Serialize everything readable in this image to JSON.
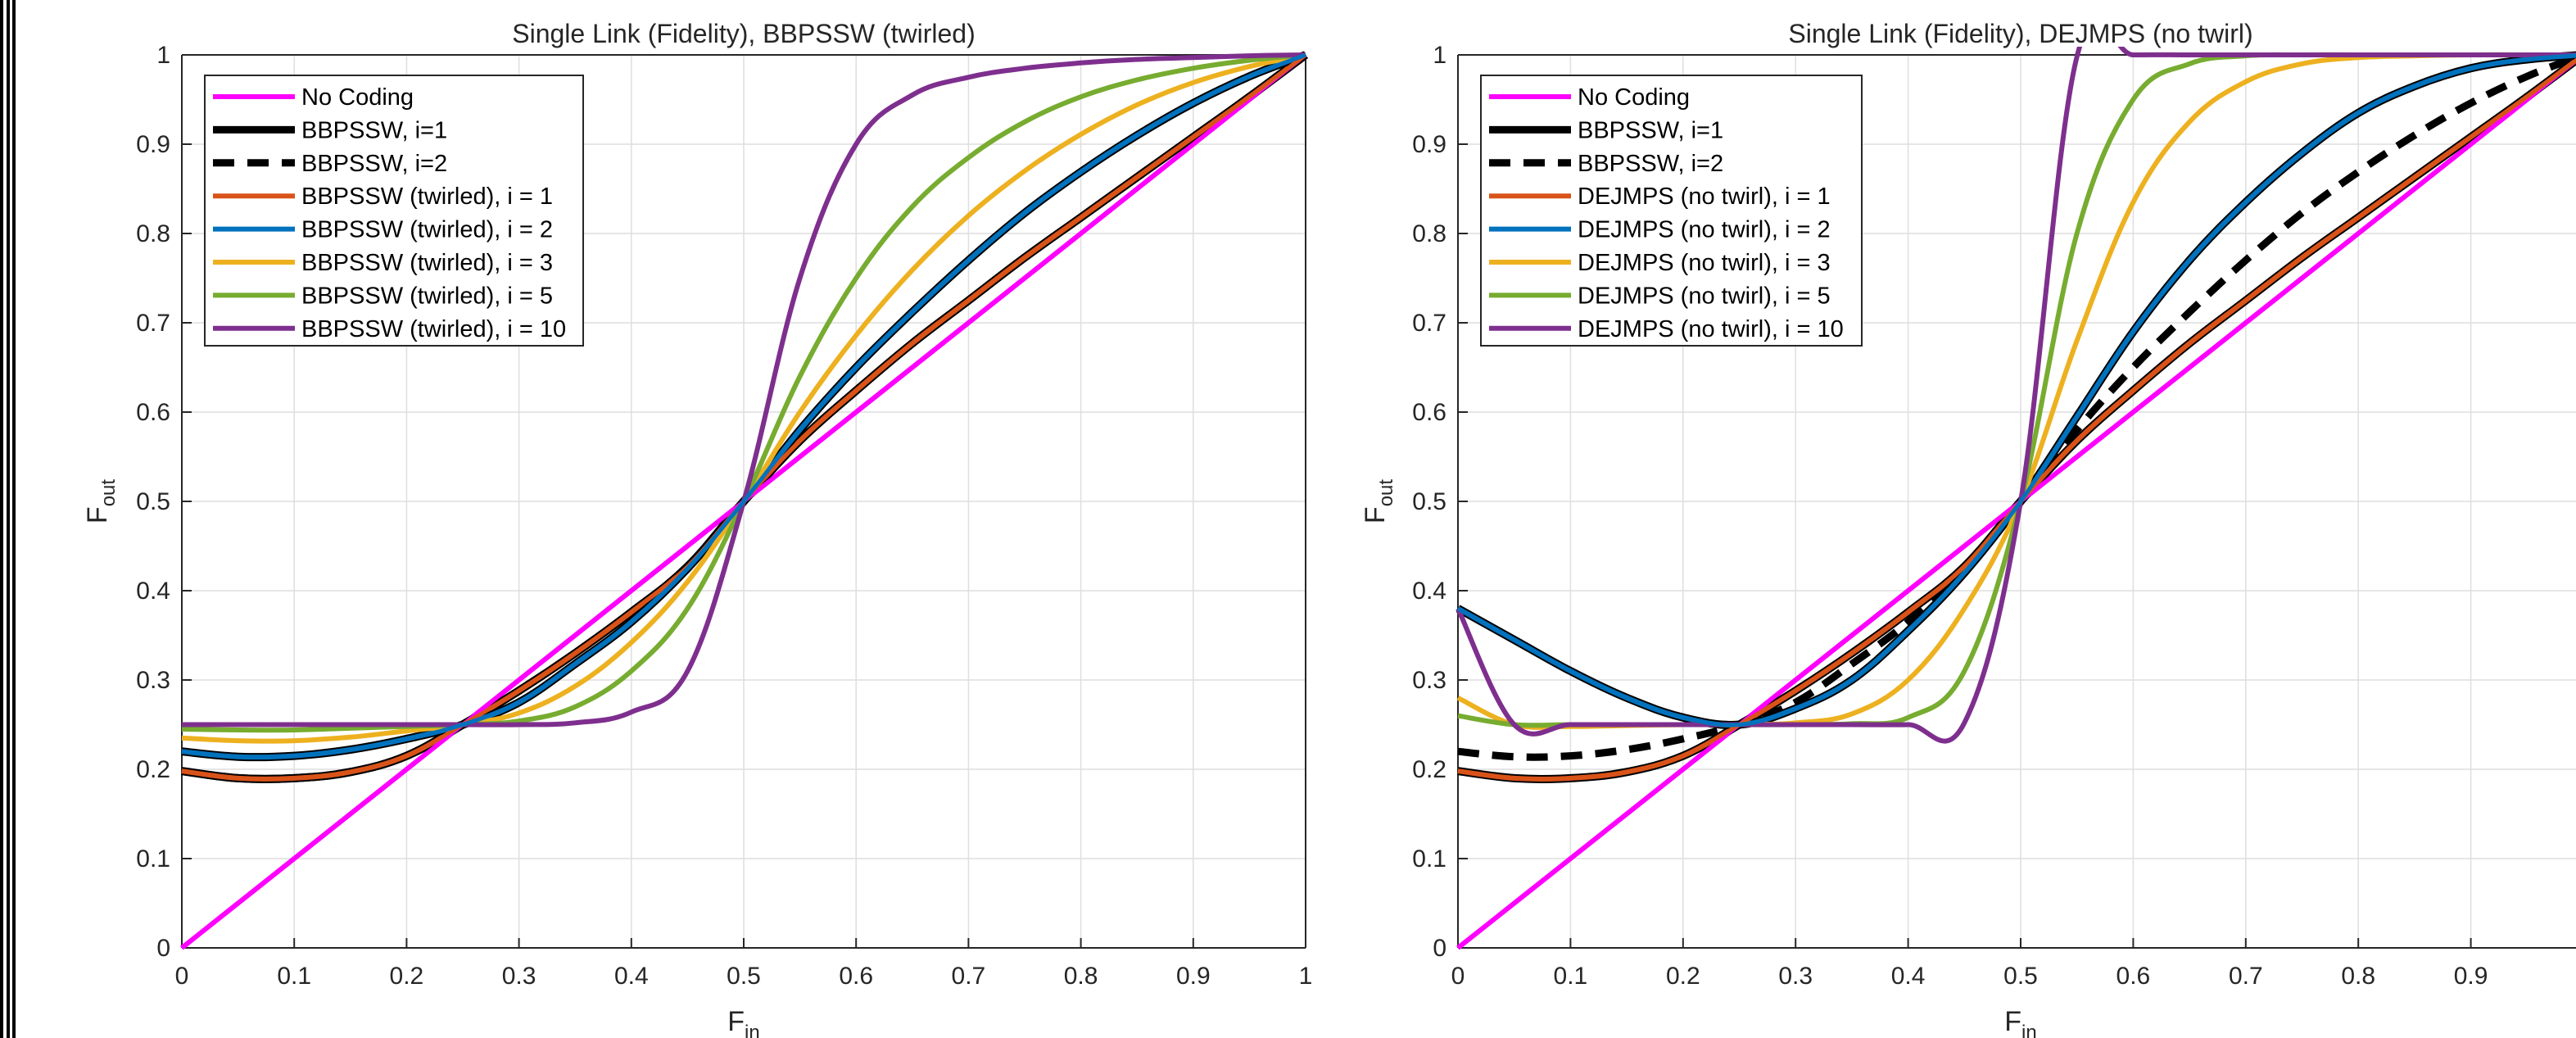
{
  "chart_data": [
    {
      "type": "line",
      "title": "Single Link (Fidelity), BBPSSW (twirled)",
      "xlabel": "F",
      "xlabel_sub": "in",
      "ylabel": "F",
      "ylabel_sub": "out",
      "xlim": [
        0,
        1
      ],
      "ylim": [
        0,
        1
      ],
      "xticks": [
        "0",
        "0.1",
        "0.2",
        "0.3",
        "0.4",
        "0.5",
        "0.6",
        "0.7",
        "0.8",
        "0.9",
        "1"
      ],
      "yticks": [
        "0",
        "0.1",
        "0.2",
        "0.3",
        "0.4",
        "0.5",
        "0.6",
        "0.7",
        "0.8",
        "0.9",
        "1"
      ],
      "grid": true,
      "legend_position": "top-left",
      "x": [
        0,
        0.05,
        0.1,
        0.15,
        0.2,
        0.25,
        0.3,
        0.35,
        0.4,
        0.45,
        0.5,
        0.55,
        0.6,
        0.65,
        0.7,
        0.75,
        0.8,
        0.85,
        0.9,
        0.95,
        1
      ],
      "series": [
        {
          "name": "No Coding",
          "color": "#ff00ff",
          "style": "solid",
          "values": [
            0,
            0.05,
            0.1,
            0.15,
            0.2,
            0.25,
            0.3,
            0.35,
            0.4,
            0.45,
            0.5,
            0.55,
            0.6,
            0.65,
            0.7,
            0.75,
            0.8,
            0.85,
            0.9,
            0.95,
            1
          ]
        },
        {
          "name": "BBPSSW, i=1",
          "color": "#000000",
          "style": "solid",
          "values": [
            0.198,
            0.19,
            0.19,
            0.197,
            0.215,
            0.25,
            0.288,
            0.33,
            0.376,
            0.427,
            0.5,
            0.568,
            0.624,
            0.677,
            0.725,
            0.773,
            0.818,
            0.863,
            0.908,
            0.953,
            1
          ]
        },
        {
          "name": "BBPSSW, i=2",
          "color": "#000000",
          "style": "dashed",
          "values": [
            0.22,
            0.214,
            0.215,
            0.222,
            0.234,
            0.25,
            0.275,
            0.318,
            0.365,
            0.425,
            0.5,
            0.58,
            0.65,
            0.712,
            0.77,
            0.823,
            0.869,
            0.91,
            0.946,
            0.976,
            1
          ]
        },
        {
          "name": "BBPSSW (twirled), i = 1",
          "color": "#d95319",
          "style": "solid",
          "values": [
            0.198,
            0.19,
            0.19,
            0.197,
            0.215,
            0.25,
            0.288,
            0.33,
            0.376,
            0.427,
            0.5,
            0.568,
            0.624,
            0.677,
            0.725,
            0.773,
            0.818,
            0.863,
            0.908,
            0.953,
            1
          ]
        },
        {
          "name": "BBPSSW (twirled), i = 2",
          "color": "#0072bd",
          "style": "solid",
          "values": [
            0.22,
            0.214,
            0.215,
            0.222,
            0.234,
            0.25,
            0.275,
            0.318,
            0.365,
            0.425,
            0.5,
            0.58,
            0.65,
            0.712,
            0.77,
            0.823,
            0.869,
            0.91,
            0.946,
            0.976,
            1
          ]
        },
        {
          "name": "BBPSSW (twirled), i = 3",
          "color": "#edb120",
          "style": "solid",
          "values": [
            0.235,
            0.232,
            0.232,
            0.236,
            0.243,
            0.25,
            0.263,
            0.293,
            0.342,
            0.41,
            0.5,
            0.6,
            0.686,
            0.759,
            0.82,
            0.87,
            0.911,
            0.944,
            0.969,
            0.987,
            1
          ]
        },
        {
          "name": "BBPSSW (twirled), i = 5",
          "color": "#77ac30",
          "style": "solid",
          "values": [
            0.245,
            0.244,
            0.244,
            0.246,
            0.248,
            0.25,
            0.254,
            0.27,
            0.31,
            0.38,
            0.5,
            0.64,
            0.75,
            0.83,
            0.885,
            0.925,
            0.953,
            0.972,
            0.985,
            0.994,
            1
          ]
        },
        {
          "name": "BBPSSW (twirled), i = 10",
          "color": "#7e2f8e",
          "style": "solid",
          "values": [
            0.25,
            0.25,
            0.25,
            0.25,
            0.25,
            0.25,
            0.25,
            0.252,
            0.264,
            0.31,
            0.5,
            0.75,
            0.9,
            0.955,
            0.975,
            0.985,
            0.991,
            0.995,
            0.997,
            0.999,
            1
          ]
        }
      ]
    },
    {
      "type": "line",
      "title": "Single Link (Fidelity), DEJMPS (no twirl)",
      "xlabel": "F",
      "xlabel_sub": "in",
      "ylabel": "F",
      "ylabel_sub": "out",
      "xlim": [
        0,
        1
      ],
      "ylim": [
        0,
        1
      ],
      "xticks": [
        "0",
        "0.1",
        "0.2",
        "0.3",
        "0.4",
        "0.5",
        "0.6",
        "0.7",
        "0.8",
        "0.9"
      ],
      "yticks": [
        "0",
        "0.1",
        "0.2",
        "0.3",
        "0.4",
        "0.5",
        "0.6",
        "0.7",
        "0.8",
        "0.9",
        "1"
      ],
      "grid": true,
      "legend_position": "top-left",
      "x": [
        0,
        0.05,
        0.1,
        0.15,
        0.2,
        0.25,
        0.3,
        0.35,
        0.4,
        0.45,
        0.5,
        0.55,
        0.6,
        0.65,
        0.7,
        0.75,
        0.8,
        0.85,
        0.9,
        0.95,
        1
      ],
      "series": [
        {
          "name": "No Coding",
          "color": "#ff00ff",
          "style": "solid",
          "values": [
            0,
            0.05,
            0.1,
            0.15,
            0.2,
            0.25,
            0.3,
            0.35,
            0.4,
            0.45,
            0.5,
            0.55,
            0.6,
            0.65,
            0.7,
            0.75,
            0.8,
            0.85,
            0.9,
            0.95,
            1
          ]
        },
        {
          "name": "BBPSSW, i=1",
          "color": "#000000",
          "style": "solid",
          "values": [
            0.198,
            0.19,
            0.19,
            0.197,
            0.215,
            0.25,
            0.288,
            0.33,
            0.376,
            0.427,
            0.5,
            0.568,
            0.624,
            0.677,
            0.725,
            0.773,
            0.818,
            0.863,
            0.908,
            0.953,
            1
          ]
        },
        {
          "name": "BBPSSW, i=2",
          "color": "#000000",
          "style": "dashed",
          "values": [
            0.22,
            0.214,
            0.215,
            0.222,
            0.234,
            0.25,
            0.275,
            0.318,
            0.365,
            0.425,
            0.5,
            0.58,
            0.65,
            0.712,
            0.77,
            0.823,
            0.869,
            0.91,
            0.946,
            0.976,
            1
          ]
        },
        {
          "name": "DEJMPS (no twirl), i = 1",
          "color": "#d95319",
          "style": "solid",
          "values": [
            0.198,
            0.19,
            0.19,
            0.197,
            0.215,
            0.25,
            0.288,
            0.33,
            0.376,
            0.427,
            0.5,
            0.568,
            0.624,
            0.677,
            0.725,
            0.773,
            0.818,
            0.863,
            0.908,
            0.953,
            1
          ]
        },
        {
          "name": "DEJMPS (no twirl), i = 2",
          "color": "#0072bd",
          "style": "solid",
          "values": [
            0.38,
            0.345,
            0.31,
            0.28,
            0.258,
            0.25,
            0.268,
            0.3,
            0.355,
            0.42,
            0.5,
            0.595,
            0.69,
            0.77,
            0.835,
            0.89,
            0.935,
            0.965,
            0.985,
            0.995,
            1
          ]
        },
        {
          "name": "DEJMPS (no twirl), i = 3",
          "color": "#edb120",
          "style": "solid",
          "values": [
            0.28,
            0.25,
            0.248,
            0.249,
            0.25,
            0.25,
            0.252,
            0.262,
            0.3,
            0.38,
            0.5,
            0.68,
            0.835,
            0.925,
            0.97,
            0.99,
            0.997,
            0.999,
            1,
            1,
            1
          ]
        },
        {
          "name": "DEJMPS (no twirl), i = 5",
          "color": "#77ac30",
          "style": "solid",
          "values": [
            0.26,
            0.25,
            0.25,
            0.25,
            0.25,
            0.25,
            0.25,
            0.251,
            0.258,
            0.31,
            0.5,
            0.8,
            0.95,
            0.99,
            0.999,
            1,
            1,
            1,
            1,
            1,
            1
          ]
        },
        {
          "name": "DEJMPS (no twirl), i = 10",
          "color": "#7e2f8e",
          "style": "solid",
          "values": [
            0.38,
            0.25,
            0.25,
            0.25,
            0.25,
            0.25,
            0.25,
            0.25,
            0.25,
            0.252,
            0.5,
            0.998,
            1,
            1,
            1,
            1,
            1,
            1,
            1,
            1,
            1
          ]
        }
      ]
    }
  ]
}
